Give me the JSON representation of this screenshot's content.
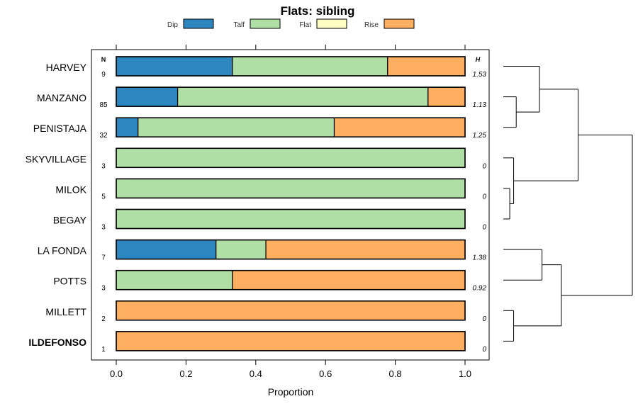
{
  "chart_data": {
    "type": "bar",
    "stacked": true,
    "orientation": "horizontal",
    "title": "Flats: sibling",
    "xlabel": "Proportion",
    "xlim": [
      0,
      1
    ],
    "xticks": [
      "0.0",
      "0.2",
      "0.4",
      "0.6",
      "0.8",
      "1.0"
    ],
    "xtick_values": [
      0,
      0.2,
      0.4,
      0.6,
      0.8,
      1.0
    ],
    "n_header": "N",
    "h_header": "H",
    "legend_position": "top",
    "series": [
      {
        "name": "Dip",
        "color": "#2E86C1"
      },
      {
        "name": "Talf",
        "color": "#B0DFA6"
      },
      {
        "name": "Flat",
        "color": "#FFFFC4"
      },
      {
        "name": "Rise",
        "color": "#FDAE61"
      }
    ],
    "rows": [
      {
        "label": "HARVEY",
        "n": "9",
        "h": "1.53",
        "bold": false,
        "values": [
          0.333,
          0.445,
          0,
          0.222
        ]
      },
      {
        "label": "MANZANO",
        "n": "85",
        "h": "1.13",
        "bold": false,
        "values": [
          0.176,
          0.718,
          0,
          0.106
        ]
      },
      {
        "label": "PENISTAJA",
        "n": "32",
        "h": "1.25",
        "bold": false,
        "values": [
          0.0625,
          0.5625,
          0,
          0.375
        ]
      },
      {
        "label": "SKYVILLAGE",
        "n": "3",
        "h": "0",
        "bold": false,
        "values": [
          0,
          1,
          0,
          0
        ]
      },
      {
        "label": "MILOK",
        "n": "5",
        "h": "0",
        "bold": false,
        "values": [
          0,
          1,
          0,
          0
        ]
      },
      {
        "label": "BEGAY",
        "n": "3",
        "h": "0",
        "bold": false,
        "values": [
          0,
          1,
          0,
          0
        ]
      },
      {
        "label": "LA FONDA",
        "n": "7",
        "h": "1.38",
        "bold": false,
        "values": [
          0.286,
          0.143,
          0,
          0.571
        ]
      },
      {
        "label": "POTTS",
        "n": "3",
        "h": "0.92",
        "bold": false,
        "values": [
          0,
          0.333,
          0,
          0.667
        ]
      },
      {
        "label": "MILLETT",
        "n": "2",
        "h": "0",
        "bold": false,
        "values": [
          0,
          0,
          0,
          1
        ]
      },
      {
        "label": "ILDEFONSO",
        "n": "1",
        "h": "0",
        "bold": true,
        "values": [
          0,
          0,
          0,
          1
        ]
      }
    ],
    "dendrogram": {
      "description": "hierarchical clustering of rows",
      "merges": [
        {
          "left": 1,
          "right": 2,
          "height": 0.1
        },
        {
          "left": 0,
          "right": "m0",
          "height": 0.28
        },
        {
          "left": 4,
          "right": 5,
          "height": 0.05
        },
        {
          "left": 3,
          "right": "m2",
          "height": 0.08
        },
        {
          "left": "m1",
          "right": "m3",
          "height": 0.58
        },
        {
          "left": 6,
          "right": 7,
          "height": 0.3
        },
        {
          "left": 8,
          "right": 9,
          "height": 0.08
        },
        {
          "left": "m5",
          "right": "m6",
          "height": 0.45
        },
        {
          "left": "m4",
          "right": "m7",
          "height": 1.0
        }
      ]
    }
  }
}
